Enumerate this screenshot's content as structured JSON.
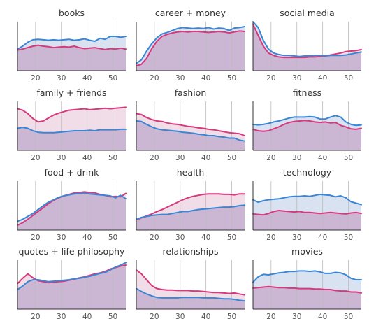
{
  "colors": {
    "blue": "#3a86d4",
    "pink": "#d6397c",
    "overlap_fill": "#cbb6d4",
    "blue_fill": "#d9e2f1",
    "pink_fill": "#f1dde7",
    "gridline": "#bcbcbc",
    "axis": "#333333"
  },
  "chart_data": [
    {
      "type": "area",
      "title": "books",
      "x": [
        13,
        15,
        17,
        19,
        21,
        23,
        25,
        27,
        29,
        31,
        33,
        35,
        37,
        39,
        41,
        43,
        45,
        47,
        49,
        51,
        53,
        55
      ],
      "xticks": [
        "20",
        "30",
        "40",
        "50"
      ],
      "xlim": [
        13,
        55
      ],
      "ylim": [
        0,
        1
      ],
      "grid": true,
      "series": [
        {
          "values": [
            0.44,
            0.5,
            0.58,
            0.63,
            0.64,
            0.63,
            0.62,
            0.63,
            0.62,
            0.63,
            0.64,
            0.62,
            0.63,
            0.65,
            0.62,
            0.6,
            0.66,
            0.64,
            0.7,
            0.7,
            0.68,
            0.7
          ]
        },
        {
          "values": [
            0.42,
            0.44,
            0.47,
            0.5,
            0.52,
            0.5,
            0.49,
            0.47,
            0.48,
            0.49,
            0.48,
            0.5,
            0.47,
            0.45,
            0.46,
            0.47,
            0.45,
            0.43,
            0.45,
            0.44,
            0.46,
            0.44
          ]
        }
      ]
    },
    {
      "type": "area",
      "title": "career + money",
      "x": [
        13,
        15,
        17,
        19,
        21,
        23,
        25,
        27,
        29,
        31,
        33,
        35,
        37,
        39,
        41,
        43,
        45,
        47,
        49,
        51,
        53,
        55
      ],
      "xticks": [
        "20",
        "30",
        "40",
        "50"
      ],
      "xlim": [
        13,
        55
      ],
      "ylim": [
        0,
        1
      ],
      "grid": true,
      "series": [
        {
          "values": [
            0.15,
            0.22,
            0.4,
            0.55,
            0.67,
            0.75,
            0.78,
            0.82,
            0.86,
            0.88,
            0.87,
            0.86,
            0.87,
            0.86,
            0.88,
            0.85,
            0.87,
            0.86,
            0.82,
            0.87,
            0.88,
            0.9
          ]
        },
        {
          "values": [
            0.1,
            0.13,
            0.25,
            0.45,
            0.6,
            0.7,
            0.74,
            0.77,
            0.79,
            0.8,
            0.79,
            0.8,
            0.8,
            0.79,
            0.78,
            0.79,
            0.8,
            0.79,
            0.77,
            0.79,
            0.81,
            0.8
          ]
        }
      ]
    },
    {
      "type": "area",
      "title": "social media",
      "x": [
        13,
        15,
        17,
        19,
        21,
        23,
        25,
        27,
        29,
        31,
        33,
        35,
        37,
        39,
        41,
        43,
        45,
        47,
        49,
        51,
        53,
        55
      ],
      "xticks": [
        "20",
        "30",
        "40",
        "50"
      ],
      "xlim": [
        13,
        55
      ],
      "ylim": [
        0,
        1
      ],
      "grid": true,
      "series": [
        {
          "values": [
            1.0,
            0.88,
            0.62,
            0.44,
            0.36,
            0.33,
            0.31,
            0.31,
            0.3,
            0.29,
            0.3,
            0.3,
            0.31,
            0.31,
            0.3,
            0.31,
            0.31,
            0.31,
            0.32,
            0.34,
            0.36,
            0.38
          ]
        },
        {
          "values": [
            0.95,
            0.72,
            0.5,
            0.36,
            0.31,
            0.28,
            0.27,
            0.27,
            0.27,
            0.27,
            0.27,
            0.28,
            0.28,
            0.29,
            0.3,
            0.32,
            0.34,
            0.36,
            0.39,
            0.4,
            0.41,
            0.43
          ]
        }
      ]
    },
    {
      "type": "area",
      "title": "family + friends",
      "x": [
        13,
        15,
        17,
        19,
        21,
        23,
        25,
        27,
        29,
        31,
        33,
        35,
        37,
        39,
        41,
        43,
        45,
        47,
        49,
        51,
        53,
        55
      ],
      "xticks": [
        "20",
        "30",
        "40",
        "50"
      ],
      "xlim": [
        13,
        55
      ],
      "ylim": [
        0,
        1
      ],
      "grid": true,
      "series": [
        {
          "values": [
            0.45,
            0.47,
            0.45,
            0.4,
            0.37,
            0.36,
            0.36,
            0.36,
            0.37,
            0.38,
            0.39,
            0.4,
            0.4,
            0.4,
            0.41,
            0.4,
            0.42,
            0.42,
            0.42,
            0.42,
            0.43,
            0.43
          ]
        },
        {
          "values": [
            0.85,
            0.82,
            0.75,
            0.65,
            0.58,
            0.6,
            0.66,
            0.72,
            0.76,
            0.79,
            0.82,
            0.83,
            0.84,
            0.85,
            0.83,
            0.84,
            0.85,
            0.86,
            0.85,
            0.86,
            0.87,
            0.88
          ]
        }
      ]
    },
    {
      "type": "area",
      "title": "fashion",
      "x": [
        13,
        15,
        17,
        19,
        21,
        23,
        25,
        27,
        29,
        31,
        33,
        35,
        37,
        39,
        41,
        43,
        45,
        47,
        49,
        51,
        53,
        55
      ],
      "xticks": [
        "20",
        "30",
        "40",
        "50"
      ],
      "xlim": [
        13,
        55
      ],
      "ylim": [
        0,
        1
      ],
      "grid": true,
      "series": [
        {
          "values": [
            0.6,
            0.59,
            0.53,
            0.48,
            0.44,
            0.42,
            0.41,
            0.4,
            0.39,
            0.37,
            0.36,
            0.35,
            0.33,
            0.32,
            0.3,
            0.3,
            0.28,
            0.27,
            0.25,
            0.25,
            0.21,
            0.19
          ]
        },
        {
          "values": [
            0.75,
            0.73,
            0.67,
            0.63,
            0.6,
            0.59,
            0.56,
            0.54,
            0.53,
            0.51,
            0.49,
            0.48,
            0.46,
            0.45,
            0.43,
            0.42,
            0.4,
            0.38,
            0.36,
            0.35,
            0.34,
            0.3
          ]
        }
      ]
    },
    {
      "type": "area",
      "title": "fitness",
      "x": [
        13,
        15,
        17,
        19,
        21,
        23,
        25,
        27,
        29,
        31,
        33,
        35,
        37,
        39,
        41,
        43,
        45,
        47,
        49,
        51,
        53,
        55
      ],
      "xticks": [
        "20",
        "30",
        "40",
        "50"
      ],
      "xlim": [
        13,
        55
      ],
      "ylim": [
        0,
        1
      ],
      "grid": true,
      "series": [
        {
          "values": [
            0.53,
            0.52,
            0.53,
            0.55,
            0.58,
            0.6,
            0.63,
            0.66,
            0.68,
            0.68,
            0.68,
            0.69,
            0.68,
            0.64,
            0.64,
            0.68,
            0.71,
            0.68,
            0.58,
            0.53,
            0.51,
            0.52
          ]
        },
        {
          "values": [
            0.43,
            0.4,
            0.39,
            0.4,
            0.44,
            0.48,
            0.53,
            0.57,
            0.59,
            0.6,
            0.61,
            0.6,
            0.58,
            0.57,
            0.58,
            0.56,
            0.57,
            0.51,
            0.48,
            0.44,
            0.43,
            0.45
          ]
        }
      ]
    },
    {
      "type": "area",
      "title": "food + drink",
      "x": [
        13,
        15,
        17,
        19,
        21,
        23,
        25,
        27,
        29,
        31,
        33,
        35,
        37,
        39,
        41,
        43,
        45,
        47,
        49,
        51,
        53,
        55
      ],
      "xticks": [
        "20",
        "30",
        "40",
        "50"
      ],
      "xlim": [
        13,
        55
      ],
      "ylim": [
        0,
        1
      ],
      "grid": true,
      "series": [
        {
          "values": [
            0.18,
            0.22,
            0.28,
            0.34,
            0.42,
            0.5,
            0.57,
            0.62,
            0.67,
            0.7,
            0.72,
            0.74,
            0.75,
            0.76,
            0.74,
            0.73,
            0.72,
            0.71,
            0.7,
            0.66,
            0.71,
            0.64
          ]
        },
        {
          "values": [
            0.1,
            0.15,
            0.22,
            0.3,
            0.38,
            0.46,
            0.54,
            0.61,
            0.66,
            0.7,
            0.73,
            0.76,
            0.77,
            0.78,
            0.77,
            0.76,
            0.73,
            0.71,
            0.68,
            0.69,
            0.68,
            0.75
          ]
        }
      ]
    },
    {
      "type": "area",
      "title": "health",
      "x": [
        13,
        15,
        17,
        19,
        21,
        23,
        25,
        27,
        29,
        31,
        33,
        35,
        37,
        39,
        41,
        43,
        45,
        47,
        49,
        51,
        53,
        55
      ],
      "xticks": [
        "20",
        "30",
        "40",
        "50"
      ],
      "xlim": [
        13,
        55
      ],
      "ylim": [
        0,
        1
      ],
      "grid": true,
      "series": [
        {
          "values": [
            0.22,
            0.26,
            0.28,
            0.3,
            0.31,
            0.32,
            0.32,
            0.34,
            0.36,
            0.38,
            0.38,
            0.4,
            0.42,
            0.43,
            0.44,
            0.45,
            0.46,
            0.47,
            0.47,
            0.48,
            0.5,
            0.51
          ]
        },
        {
          "values": [
            0.21,
            0.25,
            0.29,
            0.33,
            0.38,
            0.42,
            0.47,
            0.52,
            0.57,
            0.62,
            0.66,
            0.69,
            0.71,
            0.73,
            0.74,
            0.74,
            0.74,
            0.73,
            0.73,
            0.72,
            0.74,
            0.74
          ]
        }
      ]
    },
    {
      "type": "area",
      "title": "technology",
      "x": [
        13,
        15,
        17,
        19,
        21,
        23,
        25,
        27,
        29,
        31,
        33,
        35,
        37,
        39,
        41,
        43,
        45,
        47,
        49,
        51,
        53,
        55
      ],
      "xticks": [
        "20",
        "30",
        "40",
        "50"
      ],
      "xlim": [
        13,
        55
      ],
      "ylim": [
        0,
        1
      ],
      "grid": true,
      "series": [
        {
          "values": [
            0.62,
            0.57,
            0.6,
            0.62,
            0.63,
            0.64,
            0.66,
            0.68,
            0.69,
            0.69,
            0.7,
            0.69,
            0.71,
            0.73,
            0.72,
            0.71,
            0.68,
            0.7,
            0.66,
            0.58,
            0.55,
            0.52
          ]
        },
        {
          "values": [
            0.33,
            0.32,
            0.31,
            0.34,
            0.38,
            0.4,
            0.39,
            0.38,
            0.37,
            0.38,
            0.36,
            0.36,
            0.35,
            0.34,
            0.35,
            0.36,
            0.35,
            0.34,
            0.33,
            0.35,
            0.36,
            0.34
          ]
        }
      ]
    },
    {
      "type": "area",
      "title": "quotes + life philosophy",
      "x": [
        13,
        15,
        17,
        19,
        21,
        23,
        25,
        27,
        29,
        31,
        33,
        35,
        37,
        39,
        41,
        43,
        45,
        47,
        49,
        51,
        53,
        55
      ],
      "xticks": [
        "20",
        "30",
        "40",
        "50"
      ],
      "xlim": [
        13,
        55
      ],
      "ylim": [
        0,
        1
      ],
      "grid": true,
      "series": [
        {
          "values": [
            0.4,
            0.47,
            0.56,
            0.6,
            0.6,
            0.58,
            0.56,
            0.57,
            0.58,
            0.59,
            0.6,
            0.62,
            0.63,
            0.65,
            0.67,
            0.7,
            0.73,
            0.75,
            0.8,
            0.86,
            0.9,
            0.95
          ]
        },
        {
          "values": [
            0.52,
            0.63,
            0.72,
            0.64,
            0.58,
            0.56,
            0.54,
            0.55,
            0.56,
            0.57,
            0.59,
            0.61,
            0.64,
            0.66,
            0.69,
            0.72,
            0.74,
            0.77,
            0.82,
            0.85,
            0.88,
            0.9
          ]
        }
      ]
    },
    {
      "type": "area",
      "title": "relationships",
      "x": [
        13,
        15,
        17,
        19,
        21,
        23,
        25,
        27,
        29,
        31,
        33,
        35,
        37,
        39,
        41,
        43,
        45,
        47,
        49,
        51,
        53,
        55
      ],
      "xticks": [
        "20",
        "30",
        "40",
        "50"
      ],
      "xlim": [
        13,
        55
      ],
      "ylim": [
        0,
        1
      ],
      "grid": true,
      "series": [
        {
          "values": [
            0.42,
            0.36,
            0.31,
            0.27,
            0.24,
            0.23,
            0.23,
            0.23,
            0.23,
            0.24,
            0.24,
            0.24,
            0.24,
            0.23,
            0.23,
            0.23,
            0.22,
            0.21,
            0.21,
            0.2,
            0.18,
            0.17
          ]
        },
        {
          "values": [
            0.8,
            0.72,
            0.6,
            0.48,
            0.42,
            0.4,
            0.39,
            0.39,
            0.38,
            0.38,
            0.38,
            0.37,
            0.37,
            0.36,
            0.35,
            0.34,
            0.34,
            0.33,
            0.32,
            0.33,
            0.31,
            0.29
          ]
        }
      ]
    },
    {
      "type": "area",
      "title": "movies",
      "x": [
        13,
        15,
        17,
        19,
        21,
        23,
        25,
        27,
        29,
        31,
        33,
        35,
        37,
        39,
        41,
        43,
        45,
        47,
        49,
        51,
        53,
        55
      ],
      "xticks": [
        "20",
        "30",
        "40",
        "50"
      ],
      "xlim": [
        13,
        55
      ],
      "ylim": [
        0,
        1
      ],
      "grid": true,
      "series": [
        {
          "values": [
            0.55,
            0.66,
            0.71,
            0.7,
            0.72,
            0.74,
            0.75,
            0.77,
            0.77,
            0.78,
            0.78,
            0.77,
            0.78,
            0.76,
            0.73,
            0.73,
            0.75,
            0.74,
            0.7,
            0.63,
            0.6,
            0.6
          ]
        },
        {
          "values": [
            0.43,
            0.44,
            0.45,
            0.46,
            0.45,
            0.44,
            0.44,
            0.43,
            0.43,
            0.42,
            0.42,
            0.42,
            0.41,
            0.41,
            0.4,
            0.4,
            0.38,
            0.37,
            0.37,
            0.35,
            0.35,
            0.33
          ]
        }
      ]
    }
  ]
}
